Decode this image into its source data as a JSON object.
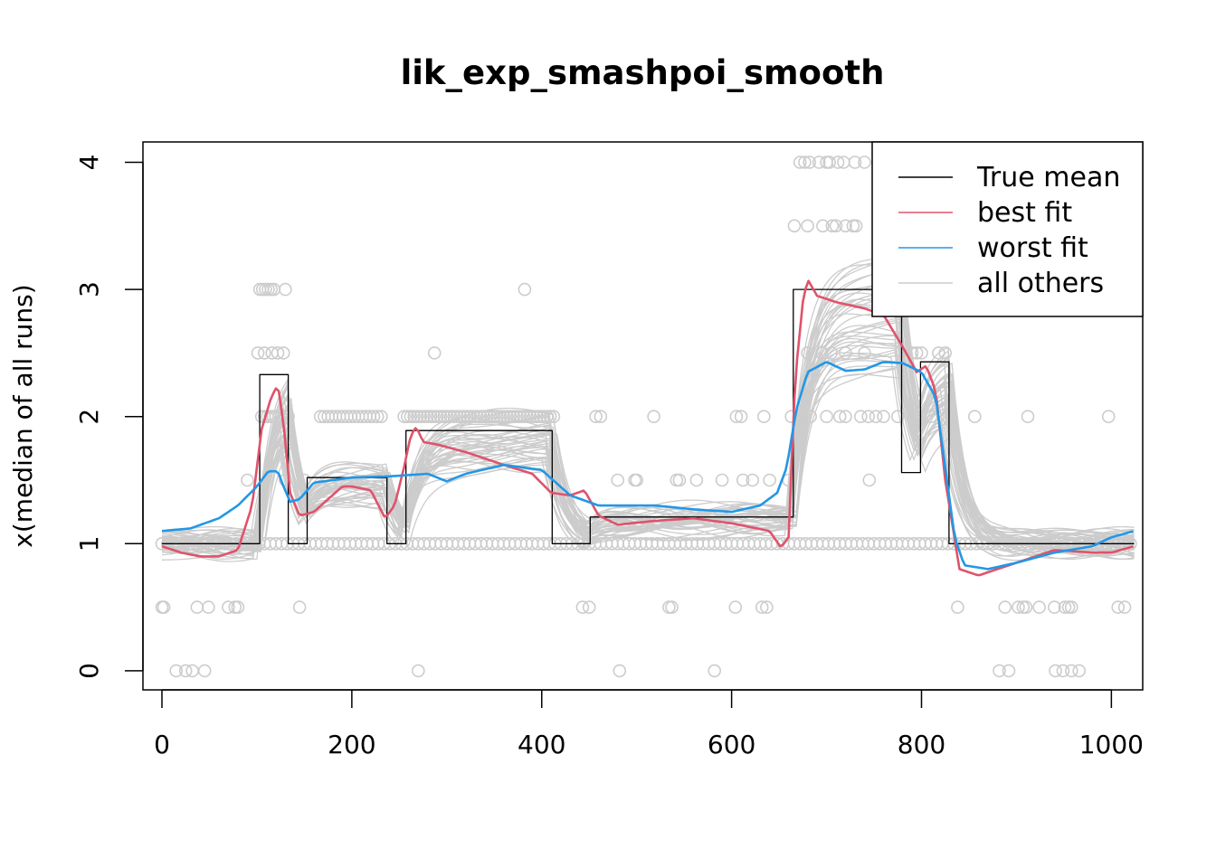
{
  "chart_data": {
    "type": "line",
    "title": "lik_exp_smashpoi_smooth",
    "xlabel": "",
    "ylabel": "x(median of all runs)",
    "xlim": [
      -20,
      1033
    ],
    "ylim": [
      -0.15,
      4.16
    ],
    "xticks": [
      0,
      200,
      400,
      600,
      800,
      1000
    ],
    "yticks": [
      0,
      1,
      2,
      3,
      4
    ],
    "grid": false,
    "legend": {
      "position": "top-right",
      "entries": [
        {
          "label": "True mean",
          "color": "#000000"
        },
        {
          "label": "best fit",
          "color": "#DF536B"
        },
        {
          "label": "worst fit",
          "color": "#2297E6"
        },
        {
          "label": "all others",
          "color": "#CCCCCC"
        }
      ]
    },
    "series": [
      {
        "name": "True mean",
        "color": "#000000",
        "step": true,
        "x": [
          0,
          103,
          133,
          153,
          237,
          257,
          411,
          451,
          665,
          779,
          799,
          829,
          1024
        ],
        "y": [
          1.0,
          2.33,
          1.0,
          1.52,
          1.0,
          1.89,
          1.0,
          1.21,
          3.0,
          1.56,
          2.43,
          1.0,
          1.0
        ]
      },
      {
        "name": "best fit",
        "color": "#DF536B",
        "x": [
          0,
          20,
          40,
          60,
          80,
          95,
          105,
          115,
          122,
          128,
          135,
          145,
          160,
          175,
          190,
          200,
          220,
          235,
          245,
          255,
          262,
          268,
          275,
          290,
          320,
          360,
          390,
          410,
          430,
          445,
          460,
          480,
          520,
          560,
          600,
          640,
          652,
          660,
          667,
          675,
          680,
          690,
          710,
          740,
          760,
          780,
          795,
          805,
          815,
          825,
          840,
          860,
          900,
          940,
          980,
          1000,
          1024
        ],
        "y": [
          0.98,
          0.93,
          0.9,
          0.9,
          0.95,
          1.3,
          1.9,
          2.15,
          2.25,
          1.95,
          1.4,
          1.22,
          1.25,
          1.35,
          1.45,
          1.45,
          1.42,
          1.2,
          1.3,
          1.6,
          1.85,
          1.92,
          1.8,
          1.78,
          1.72,
          1.62,
          1.55,
          1.4,
          1.38,
          1.42,
          1.22,
          1.15,
          1.18,
          1.2,
          1.16,
          1.1,
          0.97,
          1.05,
          2.3,
          2.9,
          3.08,
          2.95,
          2.9,
          2.85,
          2.8,
          2.55,
          2.35,
          2.4,
          2.2,
          1.5,
          0.8,
          0.75,
          0.85,
          0.95,
          0.93,
          0.93,
          0.98
        ]
      },
      {
        "name": "worst fit",
        "color": "#2297E6",
        "x": [
          0,
          30,
          60,
          80,
          100,
          112,
          122,
          128,
          135,
          145,
          160,
          200,
          240,
          280,
          300,
          320,
          360,
          400,
          430,
          460,
          520,
          560,
          600,
          630,
          648,
          658,
          668,
          680,
          700,
          720,
          740,
          760,
          780,
          800,
          815,
          825,
          835,
          845,
          870,
          900,
          940,
          980,
          1000,
          1024
        ],
        "y": [
          1.1,
          1.12,
          1.2,
          1.3,
          1.45,
          1.57,
          1.57,
          1.45,
          1.33,
          1.35,
          1.48,
          1.52,
          1.53,
          1.55,
          1.49,
          1.55,
          1.62,
          1.58,
          1.38,
          1.3,
          1.3,
          1.27,
          1.25,
          1.3,
          1.4,
          1.6,
          2.05,
          2.35,
          2.43,
          2.36,
          2.37,
          2.43,
          2.42,
          2.35,
          2.15,
          1.6,
          1.05,
          0.83,
          0.8,
          0.85,
          0.93,
          0.98,
          1.05,
          1.1
        ]
      }
    ],
    "others_color": "#CCCCCC",
    "points": {
      "color": "#CCCCCC",
      "groups": [
        {
          "y": 0,
          "x": [
            15,
            25,
            32,
            45,
            270,
            482,
            582,
            882,
            892,
            941,
            949,
            958,
            966
          ]
        },
        {
          "y": 0.5,
          "x": [
            0,
            2,
            37,
            49,
            70,
            77,
            80,
            145,
            443,
            450,
            534,
            537,
            604,
            632,
            637,
            838,
            888,
            902,
            907,
            910,
            924,
            940,
            951,
            955,
            958,
            1007,
            1014
          ]
        },
        {
          "y": 1.0,
          "x_range": [
            0,
            1024
          ],
          "step": 6
        },
        {
          "y": 1.5,
          "x": [
            90,
            130,
            150,
            480,
            498,
            500,
            542,
            545,
            563,
            590,
            612,
            622,
            640,
            660,
            745
          ]
        },
        {
          "y": 2.0,
          "x_range": [
            105,
            122
          ],
          "step": 3
        },
        {
          "y": 2.0,
          "x_range": [
            130,
            134
          ],
          "step": 3
        },
        {
          "y": 2.0,
          "x_range": [
            167,
            232
          ],
          "step": 4
        },
        {
          "y": 2.0,
          "x_range": [
            255,
            415
          ],
          "step": 3.5
        },
        {
          "y": 2.0,
          "x": [
            457,
            462,
            518,
            605,
            610,
            634,
            663,
            683,
            700,
            714,
            720,
            736,
            744,
            752,
            760,
            775,
            792,
            810,
            827,
            856,
            912,
            997
          ]
        },
        {
          "y": 2.5,
          "x": [
            101,
            108,
            116,
            122,
            128,
            287,
            680,
            695,
            705,
            720,
            740,
            790,
            795,
            800,
            818,
            825
          ]
        },
        {
          "y": 3.0,
          "x": [
            103,
            106,
            109,
            112,
            115,
            118,
            130,
            382
          ]
        },
        {
          "y": 3.5,
          "x": [
            666,
            680,
            696,
            706,
            710,
            720,
            728,
            731
          ]
        },
        {
          "y": 4.0,
          "x": [
            672,
            677,
            682,
            692,
            700,
            703,
            712,
            718,
            730,
            740,
            754,
            765
          ]
        }
      ]
    }
  }
}
